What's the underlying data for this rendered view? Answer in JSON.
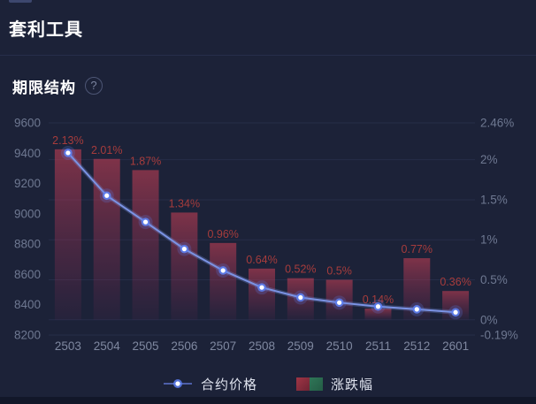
{
  "page": {
    "title": "套利工具"
  },
  "section": {
    "title": "期限结构",
    "help_icon": "?"
  },
  "colors": {
    "background": "#1c2238",
    "bottom_strip": "#121729",
    "divider": "#272e4a",
    "grid": "#262d49",
    "axis_label": "#6e7891",
    "x_label": "#7f88a0",
    "bar_label": "#a63c3c",
    "bar_top": "rgba(187,61,82,0.62)",
    "bar_bottom": "rgba(125,42,88,0.10)",
    "line": "#7b93e4",
    "dot_ring": "#5d7ef0",
    "dot_core": "#ffffff",
    "legend_text": "#dfe3ee",
    "legend_red_from": "#a03545",
    "legend_red_to": "#6e2434",
    "legend_green": "#2c6b4f"
  },
  "chart_data": {
    "type": "combo",
    "title": "期限结构",
    "categories": [
      "2503",
      "2504",
      "2505",
      "2506",
      "2507",
      "2508",
      "2509",
      "2510",
      "2511",
      "2512",
      "2601"
    ],
    "series": [
      {
        "name": "合约价格",
        "type": "line",
        "axis": "left",
        "values": [
          9402,
          9120,
          8946,
          8768,
          8626,
          8514,
          8448,
          8414,
          8388,
          8370,
          8350
        ]
      },
      {
        "name": "涨跌幅",
        "type": "bar",
        "axis": "right",
        "values": [
          2.13,
          2.01,
          1.87,
          1.34,
          0.96,
          0.64,
          0.52,
          0.5,
          0.14,
          0.77,
          0.36
        ],
        "labels": [
          "2.13%",
          "2.01%",
          "1.87%",
          "1.34%",
          "0.96%",
          "0.64%",
          "0.52%",
          "0.5%",
          "0.14%",
          "0.77%",
          "0.36%"
        ]
      }
    ],
    "left_axis": {
      "min": 8200,
      "max": 9600,
      "tick_values": [
        9600,
        9400,
        9200,
        9000,
        8800,
        8600,
        8400,
        8200
      ],
      "tick_labels": [
        "9600",
        "9400",
        "9200",
        "9000",
        "8800",
        "8600",
        "8400",
        "8200"
      ]
    },
    "right_axis": {
      "min": -0.19,
      "max": 2.46,
      "tick_values": [
        2.46,
        2,
        1.5,
        1,
        0.5,
        0,
        -0.19
      ],
      "tick_labels": [
        "2.46%",
        "2%",
        "1.5%",
        "1%",
        "0.5%",
        "0%",
        "-0.19%"
      ]
    },
    "grid": "on",
    "legend_position": "bottom"
  }
}
